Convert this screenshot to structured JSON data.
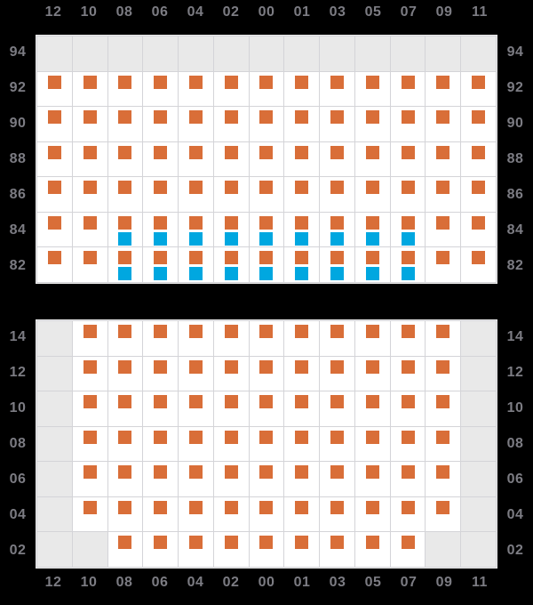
{
  "colors": {
    "background": "#000000",
    "orange": "#d96e38",
    "blue": "#00a7e0",
    "cell_bg": "#ffffff",
    "empty_cell": "#e9e9e9",
    "grid_line": "#d4d4d8",
    "panel_border": "#ececec",
    "label_text": "#7c7c83"
  },
  "axis": {
    "top_labels": [
      "12",
      "10",
      "08",
      "06",
      "04",
      "02",
      "00",
      "01",
      "03",
      "05",
      "07",
      "09",
      "11"
    ],
    "bottom_labels": [
      "12",
      "10",
      "08",
      "06",
      "04",
      "02",
      "00",
      "01",
      "03",
      "05",
      "07",
      "09",
      "11"
    ]
  },
  "chart_data": {
    "type": "heatmap",
    "title": "",
    "x_labels": [
      "12",
      "10",
      "08",
      "06",
      "04",
      "02",
      "00",
      "01",
      "03",
      "05",
      "07",
      "09",
      "11"
    ],
    "cell_states": {
      "E": "empty gray cell (no marker)",
      "O": "orange square marker",
      "OB": "orange square marker with blue square marker below"
    },
    "marker_colors": {
      "O": "#d96e38",
      "B": "#00a7e0"
    },
    "panels": [
      {
        "name": "upper",
        "y_labels": [
          "94",
          "92",
          "90",
          "88",
          "86",
          "84",
          "82"
        ],
        "rows": [
          [
            "E",
            "E",
            "E",
            "E",
            "E",
            "E",
            "E",
            "E",
            "E",
            "E",
            "E",
            "E",
            "E"
          ],
          [
            "O",
            "O",
            "O",
            "O",
            "O",
            "O",
            "O",
            "O",
            "O",
            "O",
            "O",
            "O",
            "O"
          ],
          [
            "O",
            "O",
            "O",
            "O",
            "O",
            "O",
            "O",
            "O",
            "O",
            "O",
            "O",
            "O",
            "O"
          ],
          [
            "O",
            "O",
            "O",
            "O",
            "O",
            "O",
            "O",
            "O",
            "O",
            "O",
            "O",
            "O",
            "O"
          ],
          [
            "O",
            "O",
            "O",
            "O",
            "O",
            "O",
            "O",
            "O",
            "O",
            "O",
            "O",
            "O",
            "O"
          ],
          [
            "O",
            "O",
            "OB",
            "OB",
            "OB",
            "OB",
            "OB",
            "OB",
            "OB",
            "OB",
            "OB",
            "O",
            "O"
          ],
          [
            "O",
            "O",
            "OB",
            "OB",
            "OB",
            "OB",
            "OB",
            "OB",
            "OB",
            "OB",
            "OB",
            "O",
            "O"
          ]
        ]
      },
      {
        "name": "lower",
        "y_labels": [
          "14",
          "12",
          "10",
          "08",
          "06",
          "04",
          "02"
        ],
        "rows": [
          [
            "E",
            "O",
            "O",
            "O",
            "O",
            "O",
            "O",
            "O",
            "O",
            "O",
            "O",
            "O",
            "E"
          ],
          [
            "E",
            "O",
            "O",
            "O",
            "O",
            "O",
            "O",
            "O",
            "O",
            "O",
            "O",
            "O",
            "E"
          ],
          [
            "E",
            "O",
            "O",
            "O",
            "O",
            "O",
            "O",
            "O",
            "O",
            "O",
            "O",
            "O",
            "E"
          ],
          [
            "E",
            "O",
            "O",
            "O",
            "O",
            "O",
            "O",
            "O",
            "O",
            "O",
            "O",
            "O",
            "E"
          ],
          [
            "E",
            "O",
            "O",
            "O",
            "O",
            "O",
            "O",
            "O",
            "O",
            "O",
            "O",
            "O",
            "E"
          ],
          [
            "E",
            "O",
            "O",
            "O",
            "O",
            "O",
            "O",
            "O",
            "O",
            "O",
            "O",
            "O",
            "E"
          ],
          [
            "E",
            "E",
            "O",
            "O",
            "O",
            "O",
            "O",
            "O",
            "O",
            "O",
            "O",
            "E",
            "E"
          ]
        ]
      }
    ]
  }
}
